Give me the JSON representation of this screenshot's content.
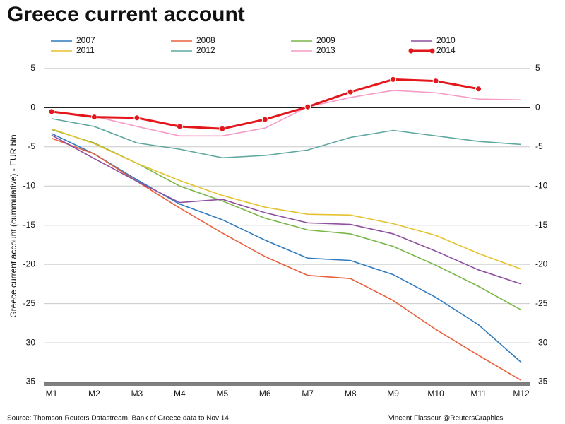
{
  "chart_data": {
    "type": "line",
    "title": "Greece current account",
    "y_label": "Greece current account (cummulative) - EUR bln",
    "source": "Source: Thomson Reuters Datastream, Bank of Greece data to Nov 14",
    "credit": "Vincent Flasseur @ReutersGraphics",
    "categories": [
      "M1",
      "M2",
      "M3",
      "M4",
      "M5",
      "M6",
      "M7",
      "M8",
      "M9",
      "M10",
      "M11",
      "M12"
    ],
    "ylim": [
      -35.4,
      5.8
    ],
    "yticks": [
      5,
      0,
      -5,
      -10,
      -15,
      -20,
      -25,
      -30,
      -35
    ],
    "grid": true,
    "series": [
      {
        "name": "2007",
        "color": "#2f7bbf",
        "values": [
          -3.3,
          -5.9,
          -9.2,
          -12.3,
          -14.3,
          -16.9,
          -19.2,
          -19.5,
          -21.3,
          -24.2,
          -27.7,
          -32.5
        ]
      },
      {
        "name": "2008",
        "color": "#e8603c",
        "values": [
          -3.9,
          -5.9,
          -9.4,
          -12.8,
          -16.0,
          -19.0,
          -21.4,
          -21.8,
          -24.6,
          -28.3,
          -31.6,
          -34.8
        ]
      },
      {
        "name": "2009",
        "color": "#7ab648",
        "values": [
          -2.8,
          -4.5,
          -7.1,
          -10.0,
          -11.9,
          -14.1,
          -15.6,
          -16.1,
          -17.7,
          -20.1,
          -22.8,
          -25.8
        ]
      },
      {
        "name": "2010",
        "color": "#8e4f9e",
        "values": [
          -3.5,
          -6.5,
          -9.4,
          -12.1,
          -11.7,
          -13.4,
          -14.7,
          -14.9,
          -16.1,
          -18.3,
          -20.7,
          -22.5
        ]
      },
      {
        "name": "2011",
        "color": "#e5c22e",
        "values": [
          -2.7,
          -4.6,
          -7.1,
          -9.3,
          -11.2,
          -12.7,
          -13.6,
          -13.7,
          -14.8,
          -16.3,
          -18.6,
          -20.6
        ]
      },
      {
        "name": "2012",
        "color": "#5fa8a0",
        "values": [
          -1.4,
          -2.4,
          -4.5,
          -5.3,
          -6.4,
          -6.1,
          -5.4,
          -3.8,
          -2.9,
          -3.6,
          -4.3,
          -4.7
        ]
      },
      {
        "name": "2013",
        "color": "#f59bc6",
        "values": [
          -0.5,
          -1.1,
          -2.4,
          -3.6,
          -3.6,
          -2.6,
          0.1,
          1.3,
          2.2,
          1.9,
          1.1,
          1.0
        ]
      },
      {
        "name": "2014",
        "color": "#e3161b",
        "markers": true,
        "values": [
          -0.5,
          -1.2,
          -1.3,
          -2.4,
          -2.7,
          -1.5,
          0.1,
          2.0,
          3.6,
          3.4,
          2.4,
          null
        ]
      }
    ]
  }
}
